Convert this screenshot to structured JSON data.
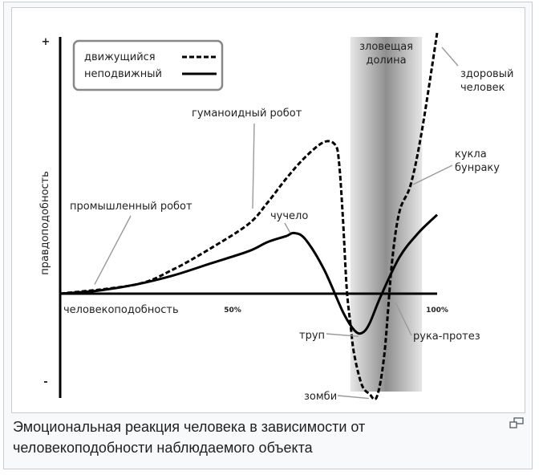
{
  "caption": "Эмоциональная реакция человека в зависимости от человекоподобности наблюдаемого объекта",
  "chart_data": {
    "type": "line",
    "xlabel": "человекоподобность",
    "ylabel": "правдоподобность",
    "x_ticks": [
      "50%",
      "100%"
    ],
    "y_ticks": [
      "+",
      "-"
    ],
    "shaded_region": {
      "label": "зловещая долина",
      "x_range": [
        77,
        96
      ]
    },
    "legend": {
      "placement": "top-left",
      "entries": [
        {
          "label": "движущийся",
          "style": "dashed"
        },
        {
          "label": "неподвижный",
          "style": "solid"
        }
      ]
    },
    "series": [
      {
        "name": "движущийся",
        "style": "dashed",
        "points": [
          [
            0,
            0
          ],
          [
            20,
            3
          ],
          [
            30,
            8
          ],
          [
            40,
            15
          ],
          [
            50,
            23
          ],
          [
            55,
            30
          ],
          [
            60,
            38
          ],
          [
            65,
            45
          ],
          [
            70,
            50
          ],
          [
            73,
            49
          ],
          [
            74,
            43
          ],
          [
            75,
            25
          ],
          [
            76,
            2
          ],
          [
            77,
            -10
          ],
          [
            78,
            -20
          ],
          [
            80,
            -30
          ],
          [
            82,
            -33
          ],
          [
            84,
            -34
          ],
          [
            86,
            -20
          ],
          [
            88,
            10
          ],
          [
            90,
            27
          ],
          [
            93,
            36
          ],
          [
            96,
            54
          ],
          [
            100,
            86
          ]
        ]
      },
      {
        "name": "неподвижный",
        "style": "solid",
        "points": [
          [
            0,
            0
          ],
          [
            10,
            1
          ],
          [
            20,
            3
          ],
          [
            30,
            6
          ],
          [
            40,
            10
          ],
          [
            50,
            14
          ],
          [
            55,
            17
          ],
          [
            60,
            19
          ],
          [
            62,
            20
          ],
          [
            65,
            18
          ],
          [
            70,
            8
          ],
          [
            75,
            -6
          ],
          [
            78,
            -12
          ],
          [
            80,
            -13
          ],
          [
            82,
            -10
          ],
          [
            85,
            -1
          ],
          [
            90,
            12
          ],
          [
            95,
            20
          ],
          [
            100,
            26
          ]
        ]
      }
    ],
    "annotations": [
      {
        "text": "промышленный робот",
        "x": 10,
        "y": 2
      },
      {
        "text": "гуманоидный робот",
        "x": 52,
        "y": 27
      },
      {
        "text": "чучело",
        "x": 61,
        "y": 19
      },
      {
        "text": "здоровый человек",
        "x": 100,
        "y": 86
      },
      {
        "text": "кукла бунраку",
        "x": 93,
        "y": 36
      },
      {
        "text": "труп",
        "x": 80,
        "y": -13
      },
      {
        "text": "рука-протез",
        "x": 90,
        "y": -22
      },
      {
        "text": "зомби",
        "x": 84,
        "y": -34
      }
    ]
  }
}
